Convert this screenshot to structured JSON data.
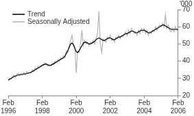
{
  "chart_data": {
    "type": "line",
    "y_label": "'000",
    "categories": [
      "Feb 1996",
      null,
      null,
      null,
      null,
      null,
      null,
      null,
      null,
      null,
      null,
      null,
      null,
      null,
      null,
      null,
      null,
      null,
      null,
      null,
      null,
      null,
      null,
      null,
      "Feb 1998",
      null,
      null,
      null,
      null,
      null,
      null,
      null,
      null,
      null,
      null,
      null,
      null,
      null,
      null,
      null,
      null,
      null,
      null,
      null,
      null,
      null,
      null,
      null,
      "Feb 2000",
      null,
      null,
      null,
      null,
      null,
      null,
      null,
      null,
      null,
      null,
      null,
      null,
      null,
      null,
      null,
      null,
      null,
      null,
      null,
      null,
      null,
      null,
      null,
      "Feb 2002",
      null,
      null,
      null,
      null,
      null,
      null,
      null,
      null,
      null,
      null,
      null,
      null,
      null,
      null,
      null,
      null,
      null,
      null,
      null,
      null,
      null,
      null,
      null,
      "Feb 2004",
      null,
      null,
      null,
      null,
      null,
      null,
      null,
      null,
      null,
      null,
      null,
      null,
      null,
      null,
      null,
      null,
      null,
      null,
      null,
      null,
      null,
      null,
      null,
      "Feb 2006"
    ],
    "series": [
      {
        "name": "Trend",
        "color": "#000000",
        "values": [
          29,
          29.5,
          30,
          30.5,
          31,
          31.3,
          31.6,
          32,
          32,
          32.2,
          32.3,
          32.5,
          32.6,
          32.8,
          33,
          33.2,
          33.5,
          34,
          34.5,
          35,
          35.5,
          36,
          36.5,
          37,
          37.5,
          38,
          38.3,
          38.2,
          37.8,
          37.5,
          37.6,
          38,
          38.5,
          39,
          39.5,
          40,
          40.5,
          41,
          41.5,
          42,
          43,
          44.5,
          46,
          48,
          50,
          50.5,
          49.5,
          47.5,
          45.5,
          45,
          46,
          47.5,
          49,
          50.5,
          51,
          51,
          50.5,
          50,
          50,
          50.5,
          51,
          51.5,
          52.5,
          53,
          53.5,
          53,
          52.5,
          52,
          52,
          52.5,
          53,
          53.5,
          53.5,
          53,
          52.5,
          52.5,
          53,
          53.5,
          54,
          54,
          54.5,
          55,
          55.5,
          56,
          56,
          56.5,
          57,
          57.5,
          57.5,
          57,
          56.5,
          56.5,
          57,
          57.5,
          58,
          58,
          58,
          57.5,
          57,
          56.5,
          56.5,
          57,
          57.5,
          58,
          58.5,
          59,
          59.5,
          60,
          60.5,
          61,
          61,
          60.5,
          60,
          59.5,
          59,
          58.5,
          58.5,
          58.5,
          58.5,
          58.5,
          58.5
        ]
      },
      {
        "name": "Seasonally Adjusted",
        "color": "#b4b4b4",
        "values": [
          28.5,
          30,
          29.5,
          31,
          32,
          30.5,
          32.5,
          33,
          31.5,
          33,
          32,
          33.5,
          32,
          34,
          33,
          33.5,
          33,
          35,
          34,
          36,
          35,
          37,
          36,
          37.5,
          38,
          37.5,
          39,
          38,
          37,
          38,
          37,
          39,
          38,
          40,
          39,
          41,
          40,
          42,
          41,
          43,
          42,
          46,
          45,
          49,
          52,
          55,
          50,
          48,
          33,
          46,
          45,
          50,
          58,
          49,
          52,
          50,
          51,
          49,
          51,
          50,
          52,
          50,
          53,
          56,
          69,
          50,
          45,
          53,
          52,
          51,
          54,
          53,
          55,
          52,
          53,
          51,
          54,
          53,
          55,
          53,
          55,
          54,
          56,
          57,
          55,
          58,
          56,
          59,
          57,
          56,
          57,
          55,
          58,
          56,
          59,
          57,
          59,
          56,
          58,
          55,
          57,
          56,
          58,
          57,
          60,
          58,
          60,
          61,
          60,
          62,
          60,
          67,
          59,
          61,
          58,
          57,
          59,
          57,
          60,
          58,
          59
        ]
      }
    ],
    "ylim": [
      20,
      70
    ],
    "yticks": [
      20,
      30,
      40,
      50,
      60,
      70
    ],
    "grid": false,
    "legend": "upper left"
  }
}
